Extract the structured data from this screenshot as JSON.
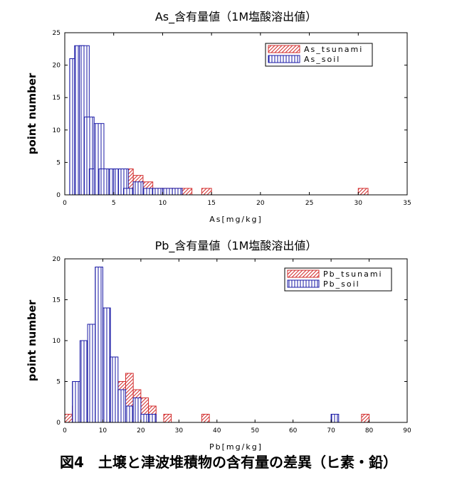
{
  "figure_caption": "図4　土壌と津波堆積物の含有量の差異（ヒ素・鉛）",
  "colors": {
    "tsunami": "#d32f2f",
    "soil": "#1a1aa6",
    "axis": "#000000"
  },
  "chart_data": [
    {
      "type": "bar",
      "title": "As_含有量値（1M塩酸溶出値）",
      "xlabel": "As[mg/kg]",
      "ylabel": "point number",
      "xlim": [
        0,
        35
      ],
      "ylim": [
        0,
        25
      ],
      "xticks": [
        0,
        5,
        10,
        15,
        20,
        25,
        30,
        35
      ],
      "yticks": [
        0,
        5,
        10,
        15,
        20,
        25
      ],
      "bin_width": 1,
      "legend_position": "top-right",
      "series": [
        {
          "name": "As_tsunami",
          "x": [
            1,
            2,
            3,
            4,
            5,
            6,
            7,
            8,
            9,
            10,
            11,
            12,
            13,
            14,
            30
          ],
          "values": [
            9,
            9,
            5,
            4,
            4,
            4,
            3,
            2,
            1,
            1,
            1,
            1,
            0,
            1,
            1
          ]
        },
        {
          "name": "As_soil",
          "x": [
            0.5,
            1,
            1.5,
            2,
            2.5,
            3,
            3.5,
            4,
            4.5,
            5,
            5.5,
            6,
            7,
            8,
            9,
            10,
            11
          ],
          "values": [
            21,
            23,
            23,
            12,
            4,
            11,
            4,
            4,
            4,
            4,
            4,
            1,
            2,
            1,
            1,
            1,
            1
          ]
        }
      ]
    },
    {
      "type": "bar",
      "title": "Pb_含有量値（1M塩酸溶出値）",
      "xlabel": "Pb[mg/kg]",
      "ylabel": "point number",
      "xlim": [
        0,
        90
      ],
      "ylim": [
        0,
        20
      ],
      "xticks": [
        0,
        10,
        20,
        30,
        40,
        50,
        60,
        70,
        80,
        90
      ],
      "yticks": [
        0,
        5,
        10,
        15,
        20
      ],
      "bin_width": 2,
      "legend_position": "top-right",
      "series": [
        {
          "name": "Pb_tsunami",
          "x": [
            0,
            2,
            4,
            6,
            8,
            10,
            12,
            14,
            16,
            18,
            20,
            22,
            26,
            36,
            78
          ],
          "values": [
            1,
            2,
            2,
            3,
            4,
            5,
            4,
            5,
            6,
            4,
            3,
            2,
            1,
            1,
            1
          ]
        },
        {
          "name": "Pb_soil",
          "x": [
            2,
            4,
            6,
            8,
            10,
            12,
            14,
            16,
            18,
            20,
            22,
            70
          ],
          "values": [
            5,
            10,
            12,
            19,
            14,
            8,
            4,
            2,
            3,
            1,
            1,
            1
          ]
        }
      ]
    }
  ]
}
